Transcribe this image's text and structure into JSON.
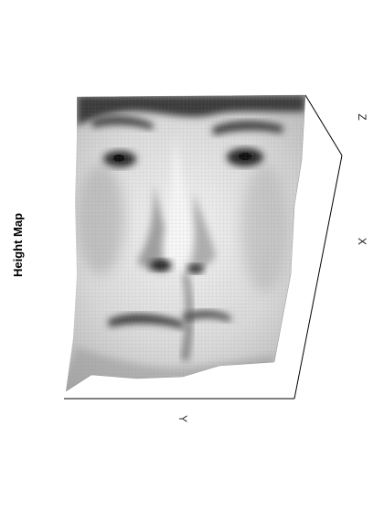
{
  "chart_data": {
    "type": "surface3d",
    "title": "Height Map",
    "axes": {
      "x": "X",
      "y": "Y",
      "z": "Z"
    },
    "grid": false,
    "surface": {
      "subject": "face",
      "colormap": "grayscale",
      "wireframe": true
    }
  },
  "colors": {
    "background": "#ffffff",
    "box": "#000000",
    "surface_light": "#f2f2f2",
    "surface_mid": "#a9a9a9",
    "surface_dark": "#2a2a2a"
  }
}
